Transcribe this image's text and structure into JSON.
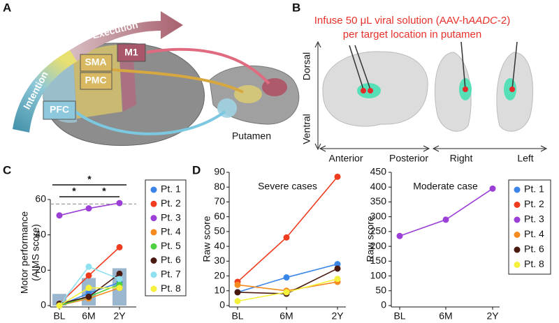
{
  "panel_labels": [
    "A",
    "B",
    "C",
    "D"
  ],
  "panel_a": {
    "execution": "Execution",
    "intention": "Intention",
    "regions": [
      "SMA",
      "PMC",
      "M1",
      "PFC"
    ],
    "putamen": "Putamen"
  },
  "panel_b": {
    "title_parts": [
      "Infuse 50 μL viral solution (AAV-h",
      "AADC",
      "-2)"
    ],
    "title_line2": "per target location in putamen",
    "dorsal": "Dorsal",
    "ventral": "Ventral",
    "anterior": "Anterior",
    "posterior": "Posterior",
    "right": "Right",
    "left": "Left"
  },
  "chart_data": [
    {
      "type": "line",
      "categories": [
        "BL",
        "6M",
        "2Y"
      ],
      "ylabel": "Motor performance",
      "ylabel2": "(AIMS score)",
      "ylim": [
        0,
        60
      ],
      "yticks": [
        0,
        20,
        40,
        60
      ],
      "bar_values": [
        6.6,
        15.6,
        21.1
      ],
      "bar_color": "#9ab7cf",
      "reference_line": 57.5,
      "significance": [
        {
          "label": "*",
          "from": 0,
          "to": 2
        },
        {
          "label": "*",
          "from": 0,
          "to": 1
        },
        {
          "label": "*",
          "from": 1,
          "to": 2
        }
      ],
      "series": [
        {
          "name": "Pt. 1",
          "color": "#3a86e8",
          "values": [
            0,
            7,
            13
          ]
        },
        {
          "name": "Pt. 2",
          "color": "#f03c1e",
          "values": [
            1,
            17,
            33
          ]
        },
        {
          "name": "Pt. 3",
          "color": "#9b3fd6",
          "values": [
            51,
            55,
            58
          ]
        },
        {
          "name": "Pt. 4",
          "color": "#f58a1f",
          "values": [
            0,
            4,
            10
          ]
        },
        {
          "name": "Pt. 5",
          "color": "#4dd040",
          "values": [
            0,
            5,
            12
          ]
        },
        {
          "name": "Pt. 6",
          "color": "#4a1a10",
          "values": [
            1,
            5,
            18
          ]
        },
        {
          "name": "Pt. 7",
          "color": "#8fe0f0",
          "values": [
            0,
            22,
            15
          ]
        },
        {
          "name": "Pt. 8",
          "color": "#f5f03c",
          "values": [
            0,
            10,
            10
          ]
        }
      ]
    },
    {
      "type": "line",
      "title": "Severe cases",
      "categories": [
        "BL",
        "6M",
        "2Y"
      ],
      "ylabel": "Raw score",
      "ylim": [
        0,
        90
      ],
      "yticks": [
        0,
        10,
        20,
        30,
        40,
        50,
        60,
        70,
        80,
        90
      ],
      "series": [
        {
          "name": "Pt. 1",
          "color": "#3a86e8",
          "values": [
            9,
            19,
            28
          ]
        },
        {
          "name": "Pt. 2",
          "color": "#f03c1e",
          "values": [
            16,
            46,
            87
          ]
        },
        {
          "name": "Pt. 4",
          "color": "#f58a1f",
          "values": [
            14,
            10,
            16
          ]
        },
        {
          "name": "Pt. 6",
          "color": "#4a1a10",
          "values": [
            9,
            8,
            25
          ]
        },
        {
          "name": "Pt. 8",
          "color": "#f5f03c",
          "values": [
            3,
            9,
            18
          ]
        }
      ]
    },
    {
      "type": "line",
      "title": "Moderate case",
      "categories": [
        "BL",
        "6M",
        "2Y"
      ],
      "ylabel": "Raw score",
      "ylim": [
        0,
        450
      ],
      "yticks": [
        0,
        50,
        100,
        150,
        200,
        250,
        300,
        350,
        400,
        450
      ],
      "series": [
        {
          "name": "Pt. 3",
          "color": "#9b3fd6",
          "values": [
            235,
            290,
            395
          ]
        }
      ]
    }
  ]
}
